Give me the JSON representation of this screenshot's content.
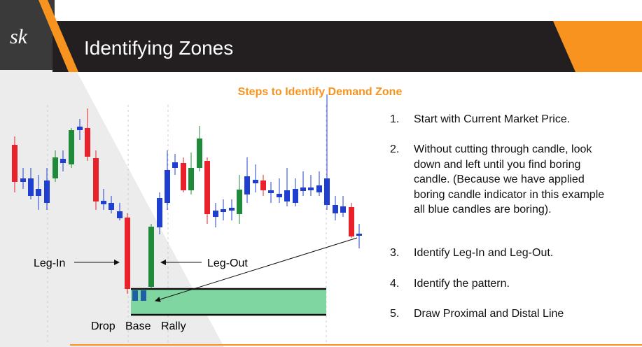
{
  "header": {
    "title": "Identifying Zones"
  },
  "chart": {
    "title": "Steps to Identify Demand Zone",
    "labels": {
      "leg_in": "Leg-In",
      "leg_out": "Leg-Out",
      "drop": "Drop",
      "base": "Base",
      "rally": "Rally"
    }
  },
  "steps": [
    {
      "number": "1.",
      "text": "Start with Current Market Price."
    },
    {
      "number": "2.",
      "text": "Without cutting through candle, look down and left until you find boring candle. (Because we have applied boring candle indicator in this example all blue candles are boring)."
    },
    {
      "number": "3.",
      "text": "Identify Leg-In and Leg-Out."
    },
    {
      "number": "4.",
      "text": "Identify the pattern."
    },
    {
      "number": "5.",
      "text": "Draw Proximal and Distal Line"
    }
  ]
}
